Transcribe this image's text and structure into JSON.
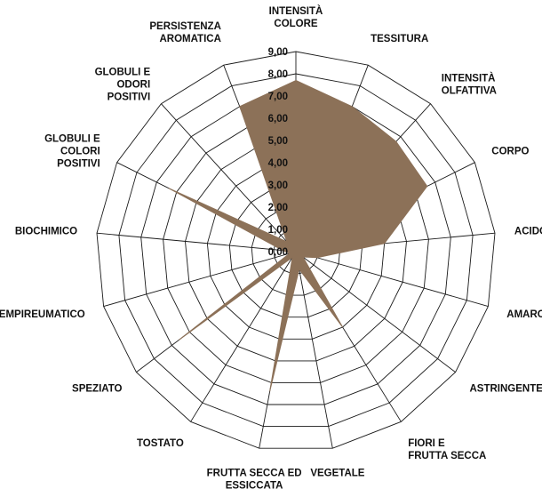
{
  "chart_data": {
    "type": "radar",
    "axes": [
      [
        "INTENSITÀ",
        "COLORE"
      ],
      [
        "TESSITURA"
      ],
      [
        "INTENSITÀ",
        "OLFATTIVA"
      ],
      [
        "CORPO"
      ],
      [
        "ACIDO"
      ],
      [
        "AMARO"
      ],
      [
        "ASTRINGENTE"
      ],
      [
        "FIORI E",
        "FRUTTA SECCA"
      ],
      [
        "VEGETALE"
      ],
      [
        "FRUTTA SECCA ED",
        "ESSICCATA"
      ],
      [
        "TOSTATO"
      ],
      [
        "SPEZIATO"
      ],
      [
        "EMPIREUMATICO"
      ],
      [
        "BIOCHIMICO"
      ],
      [
        "GLOBULI E",
        "COLORI",
        "POSITIVI"
      ],
      [
        "GLOBULI E",
        "ODORI",
        "POSITIVI"
      ],
      [
        "PERSISTENZA",
        "AROMATICA"
      ]
    ],
    "values": [
      7.7,
      7.0,
      6.7,
      6.6,
      4.0,
      1.0,
      0.4,
      4.0,
      0.8,
      6.4,
      0.3,
      6.6,
      0.3,
      0.6,
      6.4,
      0.6,
      7.0
    ],
    "r_ticks": [
      "0,00",
      "1,00",
      "2,00",
      "3,00",
      "4,00",
      "5,00",
      "6,00",
      "7,00",
      "8,00",
      "9,00"
    ],
    "r_range": [
      0,
      9
    ],
    "grid": true,
    "legend": "none",
    "colors": {
      "fill": "#8c7158",
      "grid": "#1a1a1a",
      "text": "#111111"
    }
  }
}
